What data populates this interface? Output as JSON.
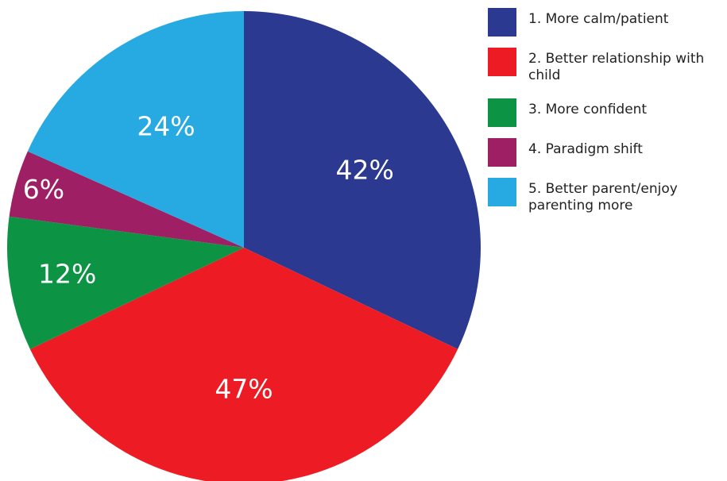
{
  "chart_data": {
    "type": "pie",
    "start_angle_deg": 0,
    "direction": "clockwise",
    "slices": [
      {
        "legend": "1. More calm/patient",
        "value": 42,
        "label": "42%",
        "color": "#2b3990"
      },
      {
        "legend": "2. Better relationship with child",
        "value": 47,
        "label": "47%",
        "color": "#ed1c24"
      },
      {
        "legend": "3. More confident",
        "value": 12,
        "label": "12%",
        "color": "#0c9444"
      },
      {
        "legend": "4. Paradigm shift",
        "value": 6,
        "label": "6%",
        "color": "#9e1f63"
      },
      {
        "legend": "5. Better parent/enjoy parenting more",
        "value": 24,
        "label": "24%",
        "color": "#27aae1"
      }
    ],
    "legend_position": "top-right"
  }
}
